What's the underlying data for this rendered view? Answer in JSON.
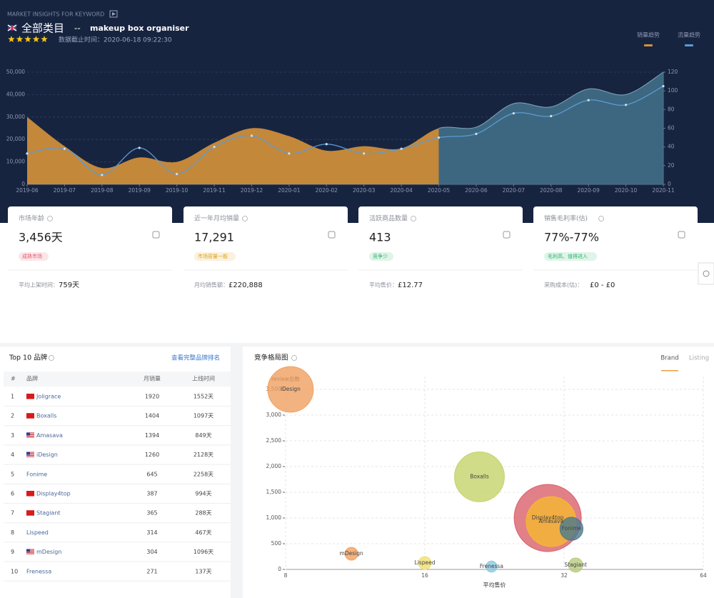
{
  "header": {
    "kicker": "MARKET INSIGHTS FOR KEYWORD",
    "title": "全部类目",
    "separator": "--",
    "keyword": "makeup box organiser",
    "rating": 5,
    "timestamp": "数据截止时间：2020-06-18 09:22:30"
  },
  "cards": [
    {
      "title": "市场年龄",
      "value": "3,456天",
      "tag": "成熟市场",
      "tag_color": "#e05a6a",
      "footer_label": "平均上架时间：",
      "footer_value": "759天"
    },
    {
      "title": "近一年月均销量",
      "value": "17,291",
      "tag": "市场容量一般",
      "tag_color": "#e0a020",
      "footer_label": "月均销售额：",
      "footer_value": "£220,888"
    },
    {
      "title": "活跃商品数量",
      "value": "413",
      "tag": "竞争少",
      "tag_color": "#2fb36a",
      "footer_label": "平均售价：",
      "footer_value": "£12.77"
    },
    {
      "title": "销售毛利率(估)",
      "value": "77%-77%",
      "tag": "毛利高、值得进入",
      "tag_color": "#2fb36a",
      "footer_label": "采购成本(估)：",
      "footer_value": "£0 - £0"
    }
  ],
  "table": {
    "title": "Top 10 品牌",
    "link": "查看完整品牌排名",
    "columns": [
      "#",
      "品牌",
      "月销量",
      "上线时间"
    ],
    "rows": [
      {
        "rank": 1,
        "brand": "Joligrace",
        "flag": "cn",
        "sales": 1920,
        "online": "1552天"
      },
      {
        "rank": 2,
        "brand": "Boxalls",
        "flag": "cn",
        "sales": 1404,
        "online": "1097天"
      },
      {
        "rank": 3,
        "brand": "Amasava",
        "flag": "us",
        "sales": 1394,
        "online": "849天"
      },
      {
        "rank": 4,
        "brand": "iDesign",
        "flag": "us",
        "sales": 1260,
        "online": "2128天"
      },
      {
        "rank": 5,
        "brand": "Fonime",
        "flag": null,
        "sales": 645,
        "online": "2258天"
      },
      {
        "rank": 6,
        "brand": "Display4top",
        "flag": "cn",
        "sales": 387,
        "online": "994天"
      },
      {
        "rank": 7,
        "brand": "Stagiant",
        "flag": "cn",
        "sales": 365,
        "online": "288天"
      },
      {
        "rank": 8,
        "brand": "Lispeed",
        "flag": null,
        "sales": 314,
        "online": "467天"
      },
      {
        "rank": 9,
        "brand": "mDesign",
        "flag": "us",
        "sales": 304,
        "online": "1096天"
      },
      {
        "rank": 10,
        "brand": "Frenessa",
        "flag": null,
        "sales": 271,
        "online": "137天"
      }
    ]
  },
  "chart_data": [
    {
      "type": "area",
      "categories": [
        "2019-06",
        "2019-07",
        "2019-08",
        "2019-09",
        "2019-10",
        "2019-11",
        "2019-12",
        "2020-01",
        "2020-02",
        "2020-03",
        "2020-04",
        "2020-05",
        "2020-06",
        "2020-07",
        "2020-08",
        "2020-09",
        "2020-10",
        "2020-11"
      ],
      "series": [
        {
          "name": "销量趋势",
          "color": "#d4913a",
          "split_color": "#3f6b84",
          "split_at": "2020-05",
          "axis": "y",
          "values": [
            30000,
            17000,
            7300,
            12000,
            10000,
            18500,
            25000,
            21500,
            15000,
            17000,
            16000,
            25000,
            25500,
            36000,
            34500,
            42500,
            40000,
            50000
          ]
        },
        {
          "name": "流量趋势",
          "color": "#5b9bd5",
          "axis": "y2",
          "values": [
            33,
            38,
            10,
            39,
            11,
            40,
            52,
            33,
            43,
            33,
            38,
            50,
            54,
            76,
            73,
            90,
            85,
            105
          ]
        }
      ],
      "ylim": [
        0,
        50000
      ],
      "yticks": [
        0,
        {
          "value": 10000,
          "label": "10,000"
        },
        {
          "value": 20000,
          "label": "20,000"
        },
        {
          "value": 30000,
          "label": "30,000"
        },
        {
          "value": 40000,
          "label": "40,000"
        },
        {
          "value": 50000,
          "label": "50,000"
        }
      ],
      "y2lim": [
        0,
        120
      ],
      "y2ticks": [
        0,
        20,
        40,
        60,
        80,
        100,
        120
      ],
      "grid": true,
      "legend": "top-right"
    },
    {
      "type": "bubble",
      "title": "竞争格局图",
      "tabs": [
        "Brand",
        "Listing"
      ],
      "xlabel": "平均售价",
      "ylabel": "review总数",
      "categories": [
        "iDesign",
        "Boxalls",
        "Display4top",
        "Amasava",
        "Fonime",
        "mDesign",
        "Lispeed",
        "Frenessa",
        "Stagiant"
      ],
      "x": [
        8.2,
        21,
        29.5,
        30,
        33.2,
        11.1,
        16,
        22.3,
        33.9
      ],
      "values": [
        3500,
        1800,
        1000,
        930,
        790,
        305,
        125,
        55,
        85
      ],
      "sizes": [
        102,
        122,
        221,
        122,
        26,
        8,
        8,
        6,
        10
      ],
      "colors": [
        "#f0a060",
        "#c5d36a",
        "#d9606a",
        "#f5b830",
        "#4a7a8c",
        "#f0a060",
        "#f0e070",
        "#8cc8e0",
        "#b8cc80"
      ],
      "xlim": [
        8,
        64
      ],
      "xticks": [
        8,
        16,
        32,
        64
      ],
      "xlog": true,
      "ylim": [
        0,
        3750
      ],
      "yticks": [
        0,
        500,
        {
          "value": 1000,
          "label": "1,000"
        },
        {
          "value": 1500,
          "label": "1,500"
        },
        {
          "value": 2000,
          "label": "2,000"
        },
        {
          "value": 2500,
          "label": "2,500"
        },
        {
          "value": 3000,
          "label": "3,000"
        },
        {
          "value": 3500,
          "label": "3,500"
        }
      ],
      "grid": true
    }
  ]
}
